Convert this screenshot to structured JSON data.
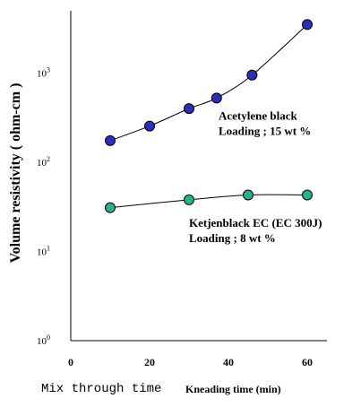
{
  "chart_data": {
    "type": "scatter",
    "ylabel": "Volume resistivity ( ohm-cm )",
    "xlabel": "Kneading time (min)",
    "xlabel_prefix": "Mix through time",
    "xlim": [
      0,
      65
    ],
    "ylim": [
      1,
      5000
    ],
    "y_scale": "log",
    "x_ticks": [
      0,
      20,
      40,
      60
    ],
    "y_ticks": [
      {
        "value": 1,
        "base": "10",
        "exp": "0"
      },
      {
        "value": 10,
        "base": "10",
        "exp": "1"
      },
      {
        "value": 100,
        "base": "10",
        "exp": "2"
      },
      {
        "value": 1000,
        "base": "10",
        "exp": "3"
      }
    ],
    "grid": false,
    "series": [
      {
        "x": [
          10,
          20,
          30,
          37,
          46,
          60
        ],
        "y": [
          175,
          255,
          400,
          525,
          950,
          3500
        ],
        "color": "#2b2fb8",
        "label_lines": [
          "Acetylene black",
          "Loading ; 15 wt %"
        ]
      },
      {
        "x": [
          10,
          30,
          45,
          60
        ],
        "y": [
          31,
          38,
          43,
          43
        ],
        "color": "#24b38c",
        "label_lines": [
          "Ketjenblack EC (EC 300J)",
          "Loading ; 8 wt %"
        ]
      }
    ]
  }
}
